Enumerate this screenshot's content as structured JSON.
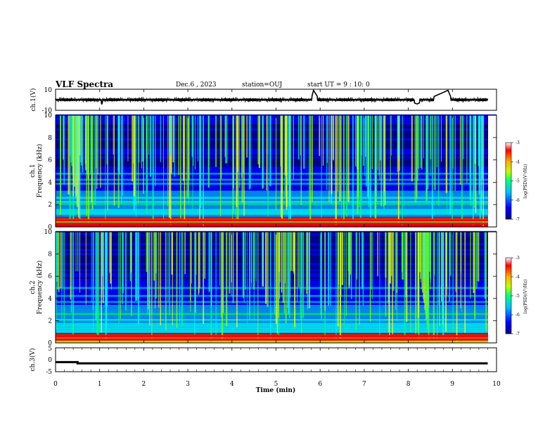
{
  "header": {
    "title": "VLF Spectra",
    "date": "Dec.6 , 2023",
    "station": "station=OUJ",
    "start": "start UT = 9 : 10: 0"
  },
  "colors": {
    "spectrogram_colormap": [
      "#00008c",
      "#0000ff",
      "#00a0ff",
      "#00ffff",
      "#00ff80",
      "#80ff00",
      "#ffff00",
      "#ff8000",
      "#ff0000",
      "#ffffff"
    ],
    "waveform": "#000000",
    "axis": "#000000"
  },
  "chart_data": [
    {
      "type": "line",
      "panel": "ch1-waveform",
      "ylabel": "ch.1(V)",
      "ylim": [
        -10,
        10
      ],
      "y_ticks": [
        "10",
        "-10"
      ],
      "x": [
        0,
        0.5,
        1,
        1.05,
        1.1,
        1.3,
        2,
        3,
        4,
        5,
        5.8,
        5.85,
        6,
        7,
        8,
        8.2,
        8.9,
        9,
        9.8
      ],
      "y": [
        -1,
        1,
        -1,
        -4,
        1,
        -1,
        1,
        -1,
        1,
        -1,
        1,
        9,
        -1,
        1,
        -1,
        -4,
        9,
        -1,
        1
      ]
    },
    {
      "type": "heatmap",
      "panel": "ch1-spectrogram",
      "ylabel_lines": [
        "ch.1",
        "Frequency (kHz)"
      ],
      "ylim": [
        0,
        10
      ],
      "y_ticks": [
        "0",
        "2",
        "4",
        "6",
        "8",
        "10"
      ],
      "colorbar": {
        "label": "log(PSD)(V²/Hz)",
        "range": [
          -7,
          -3
        ],
        "ticks": [
          "-3",
          "-4",
          "-5",
          "-6",
          "-7"
        ]
      },
      "description_rows_khz": [
        0.3,
        0.6,
        1.2,
        2.2,
        3.4,
        4.6,
        6.0,
        8.0
      ]
    },
    {
      "type": "heatmap",
      "panel": "ch2-spectrogram",
      "ylabel_lines": [
        "ch.2",
        "Frequency (kHz)"
      ],
      "ylim": [
        0,
        10
      ],
      "y_ticks": [
        "0",
        "2",
        "4",
        "6",
        "8",
        "10"
      ],
      "colorbar": {
        "label": "log(PSD)(V²/Hz)",
        "range": [
          -7,
          -3
        ],
        "ticks": [
          "-3",
          "-4",
          "-5",
          "-6",
          "-7"
        ]
      },
      "description_rows_khz": [
        0.3,
        0.6,
        1.2,
        2.2,
        3.4,
        4.2,
        6.0,
        7.5
      ]
    },
    {
      "type": "line",
      "panel": "ch3-waveform",
      "ylabel": "ch.3(V)",
      "ylim": [
        -5,
        5
      ],
      "y_ticks": [
        "5",
        "0",
        "-5"
      ],
      "x": [
        0,
        0.5,
        0.5,
        9.8
      ],
      "y": [
        -1,
        -1,
        -1.5,
        -1.5
      ]
    }
  ],
  "xaxis": {
    "label": "Time (min)",
    "range": [
      0,
      10
    ],
    "ticks": [
      "0",
      "1",
      "2",
      "3",
      "4",
      "5",
      "6",
      "7",
      "8",
      "9",
      "10"
    ]
  }
}
